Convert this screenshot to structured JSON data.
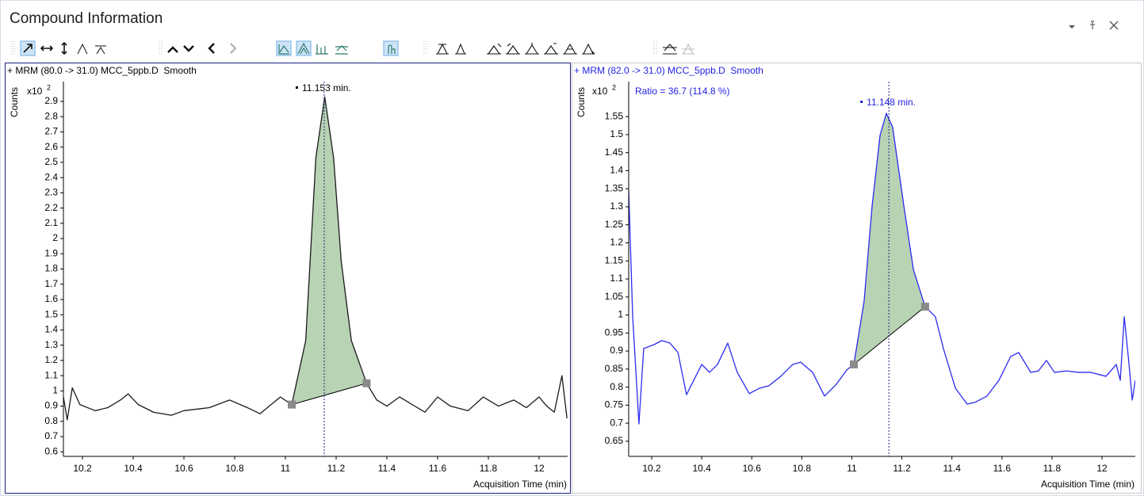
{
  "window": {
    "title": "Compound Information"
  },
  "chart_data": [
    {
      "type": "line",
      "title": "+ MRM (80.0 -> 31.0) MCC_5ppb.D  Smooth",
      "title_color": "#000000",
      "y_label": "Counts",
      "y_multiplier": "x10",
      "y_exponent": "2",
      "x_label": "Acquisition Time (min)",
      "color": "#1a1a1a",
      "axis_text_color": "#000000",
      "x": [
        10.125,
        10.14,
        10.16,
        10.19,
        10.25,
        10.3,
        10.35,
        10.38,
        10.42,
        10.48,
        10.55,
        10.6,
        10.7,
        10.78,
        10.85,
        10.9,
        10.98,
        11.025,
        11.08,
        11.12,
        11.155,
        11.19,
        11.22,
        11.26,
        11.32,
        11.36,
        11.4,
        11.45,
        11.5,
        11.55,
        11.6,
        11.65,
        11.72,
        11.78,
        11.84,
        11.9,
        11.95,
        12.0,
        12.03,
        12.06,
        12.09,
        12.11
      ],
      "values": [
        0.96,
        0.81,
        1.02,
        0.91,
        0.87,
        0.89,
        0.94,
        0.98,
        0.91,
        0.86,
        0.84,
        0.87,
        0.89,
        0.94,
        0.89,
        0.85,
        0.96,
        0.91,
        1.33,
        2.53,
        2.93,
        2.53,
        1.85,
        1.33,
        1.05,
        0.94,
        0.9,
        0.96,
        0.91,
        0.86,
        0.96,
        0.9,
        0.87,
        0.96,
        0.9,
        0.94,
        0.89,
        0.96,
        0.9,
        0.86,
        1.1,
        0.82
      ],
      "peak": {
        "x": [
          11.025,
          11.32
        ],
        "values": [
          0.91,
          1.05
        ],
        "fill": "#b8d3b4",
        "marker_color": "#8a8a8a"
      },
      "annotation": {
        "text": "11.153 min.",
        "x": 11.153,
        "color": "#000000",
        "line_color": "#1a237e"
      },
      "xlim": [
        10.125,
        12.1125
      ],
      "ylim": [
        0.57,
        3.03
      ],
      "xticks": [
        10.2,
        10.4,
        10.6,
        10.8,
        11,
        11.2,
        11.4,
        11.6,
        11.8,
        12
      ],
      "yticks": [
        0.6,
        0.7,
        0.8,
        0.9,
        1,
        1.1,
        1.2,
        1.3,
        1.4,
        1.5,
        1.6,
        1.7,
        1.8,
        1.9,
        2,
        2.1,
        2.2,
        2.3,
        2.4,
        2.5,
        2.6,
        2.7,
        2.8,
        2.9
      ]
    },
    {
      "type": "line",
      "title": "+ MRM (82.0 -> 31.0) MCC_5ppb.D  Smooth",
      "title_color": "#1f1fe0",
      "y_label": "Counts",
      "y_multiplier": "x10",
      "y_exponent": "2",
      "x_label": "Acquisition Time (min)",
      "note": "Ratio = 36.7 (114.8 %)",
      "color": "#2b2bf0",
      "axis_text_color": "#000000",
      "x": [
        10.108,
        10.124,
        10.149,
        10.168,
        10.21,
        10.24,
        10.273,
        10.305,
        10.339,
        10.368,
        10.4,
        10.431,
        10.463,
        10.504,
        10.542,
        10.59,
        10.631,
        10.669,
        10.716,
        10.764,
        10.796,
        10.843,
        10.891,
        10.938,
        10.98,
        11.008,
        11.049,
        11.081,
        11.113,
        11.138,
        11.163,
        11.208,
        11.246,
        11.293,
        11.334,
        11.366,
        11.414,
        11.461,
        11.493,
        11.54,
        11.588,
        11.635,
        11.667,
        11.715,
        11.746,
        11.778,
        11.81,
        11.858,
        11.905,
        11.953,
        12.016,
        12.057,
        12.073,
        12.089,
        12.105,
        12.121,
        12.133
      ],
      "values": [
        1.346,
        0.995,
        0.698,
        0.907,
        0.918,
        0.929,
        0.922,
        0.896,
        0.779,
        0.819,
        0.863,
        0.841,
        0.863,
        0.922,
        0.841,
        0.782,
        0.797,
        0.804,
        0.83,
        0.863,
        0.869,
        0.841,
        0.775,
        0.808,
        0.848,
        0.863,
        1.038,
        1.302,
        1.499,
        1.559,
        1.521,
        1.302,
        1.126,
        1.023,
        0.995,
        0.907,
        0.797,
        0.753,
        0.758,
        0.775,
        0.819,
        0.885,
        0.896,
        0.841,
        0.845,
        0.874,
        0.841,
        0.845,
        0.841,
        0.841,
        0.83,
        0.863,
        0.819,
        0.995,
        0.885,
        0.764,
        0.819
      ],
      "peak": {
        "x": [
          11.008,
          11.293
        ],
        "values": [
          0.863,
          1.023
        ],
        "fill": "#b8d3b4",
        "marker_color": "#8a8a8a"
      },
      "annotation": {
        "text": "11.148 min.",
        "x": 11.148,
        "color": "#1f1fe0",
        "line_color": "#1a237e"
      },
      "xlim": [
        10.108,
        12.133
      ],
      "ylim": [
        0.608,
        1.647
      ],
      "xticks": [
        10.2,
        10.4,
        10.6,
        10.8,
        11,
        11.2,
        11.4,
        11.6,
        11.8,
        12
      ],
      "yticks": [
        0.65,
        0.7,
        0.75,
        0.8,
        0.85,
        0.9,
        0.95,
        1,
        1.05,
        1.1,
        1.15,
        1.2,
        1.25,
        1.3,
        1.35,
        1.4,
        1.45,
        1.5,
        1.55
      ]
    }
  ]
}
